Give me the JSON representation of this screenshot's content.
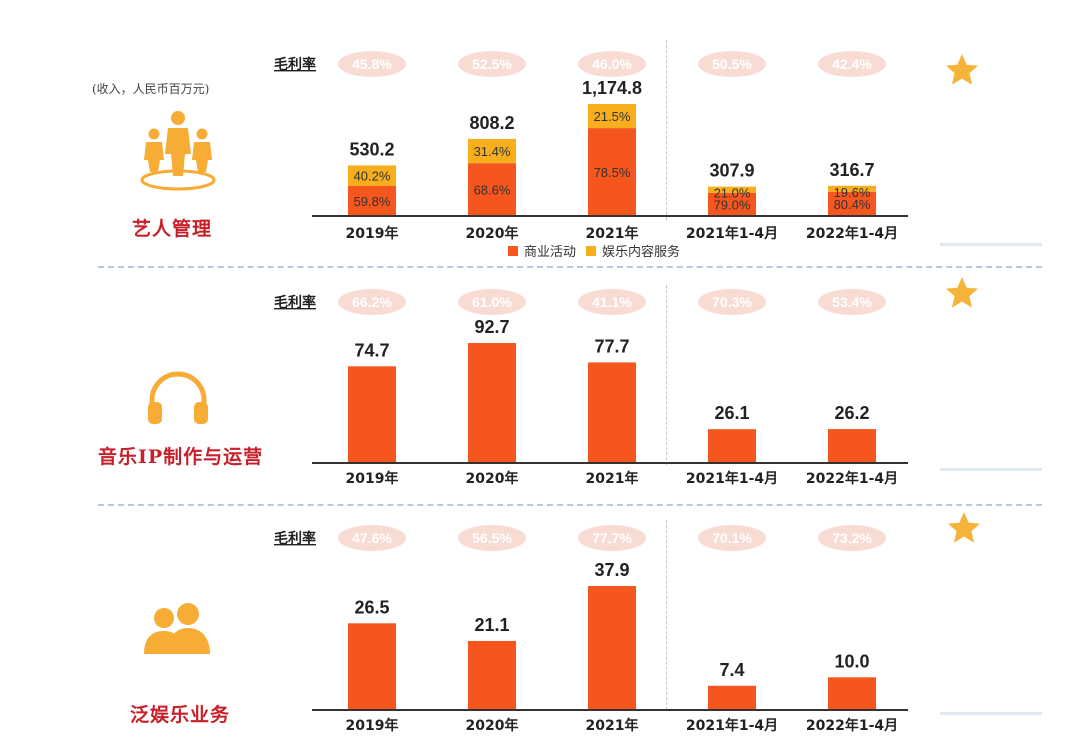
{
  "note": "(收入，人民币百万元)",
  "gross_margin_label": "毛利率",
  "legend": [
    {
      "label": "商业活动",
      "color": "#f5561e"
    },
    {
      "label": "娱乐内容服务",
      "color": "#f6ae1c"
    }
  ],
  "colors": {
    "bar": "#f5561e",
    "stack_top": "#f6ae1c",
    "pill": "#f8dcd4",
    "pill_text": "#ffffff",
    "title": "#c8202a",
    "icon": "#f7ac35",
    "star": "#f6b33a"
  },
  "sections": [
    {
      "title": "艺人管理",
      "icon": "people-group-icon"
    },
    {
      "title": "音乐IP制作与运营",
      "icon": "headphones-icon"
    },
    {
      "title": "泛娱乐业务",
      "icon": "two-people-icon"
    }
  ],
  "chart_data": [
    {
      "type": "bar",
      "stacked": true,
      "title": "艺人管理",
      "categories": [
        "2019年",
        "2020年",
        "2021年",
        "2021年1-4月",
        "2022年1-4月"
      ],
      "totals": [
        "530.2",
        "808.2",
        "1,174.8",
        "307.9",
        "316.7"
      ],
      "total_values": [
        530.2,
        808.2,
        1174.8,
        307.9,
        316.7
      ],
      "series": [
        {
          "name": "商业活动",
          "share": [
            59.8,
            68.6,
            78.5,
            79.0,
            80.4
          ],
          "labels": [
            "59.8%",
            "68.6%",
            "78.5%",
            "79.0%",
            "80.4%"
          ]
        },
        {
          "name": "娱乐内容服务",
          "share": [
            40.2,
            31.4,
            21.5,
            21.0,
            19.6
          ],
          "labels": [
            "40.2%",
            "31.4%",
            "21.5%",
            "21.0%",
            "19.6%"
          ]
        }
      ],
      "gross_margin": [
        "45.8%",
        "52.5%",
        "46.0%",
        "50.5%",
        "42.4%"
      ],
      "ylim": [
        0,
        1174.8
      ]
    },
    {
      "type": "bar",
      "title": "音乐IP制作与运营",
      "categories": [
        "2019年",
        "2020年",
        "2021年",
        "2021年1-4月",
        "2022年1-4月"
      ],
      "values": [
        74.7,
        92.7,
        77.7,
        26.1,
        26.2
      ],
      "value_labels": [
        "74.7",
        "92.7",
        "77.7",
        "26.1",
        "26.2"
      ],
      "gross_margin": [
        "66.2%",
        "61.0%",
        "41.1%",
        "70.3%",
        "53.4%"
      ],
      "ylim": [
        0,
        92.7
      ]
    },
    {
      "type": "bar",
      "title": "泛娱乐业务",
      "categories": [
        "2019年",
        "2020年",
        "2021年",
        "2021年1-4月",
        "2022年1-4月"
      ],
      "values": [
        26.5,
        21.1,
        37.9,
        7.4,
        10.0
      ],
      "value_labels": [
        "26.5",
        "21.1",
        "37.9",
        "7.4",
        "10.0"
      ],
      "gross_margin": [
        "47.6%",
        "56.5%",
        "77.7%",
        "70.1%",
        "73.2%"
      ],
      "ylim": [
        0,
        37.9
      ]
    }
  ]
}
